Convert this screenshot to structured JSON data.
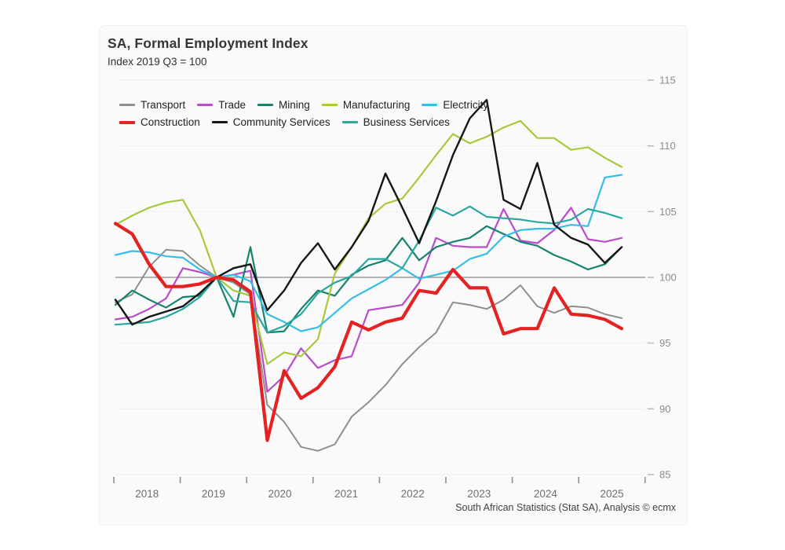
{
  "title": "SA, Formal Employment Index",
  "subtitle": "Index 2019 Q3 = 100",
  "source": "South African Statistics (Stat SA), Analysis © ecmx",
  "chart_data": {
    "type": "line",
    "title": "SA, Formal Employment Index",
    "subtitle": "Index 2019 Q3 = 100",
    "x_unit": "quarter",
    "x": [
      "2018 Q1",
      "2018 Q2",
      "2018 Q3",
      "2018 Q4",
      "2019 Q1",
      "2019 Q2",
      "2019 Q3",
      "2019 Q4",
      "2020 Q1",
      "2020 Q2",
      "2020 Q3",
      "2020 Q4",
      "2021 Q1",
      "2021 Q2",
      "2021 Q3",
      "2021 Q4",
      "2022 Q1",
      "2022 Q2",
      "2022 Q3",
      "2022 Q4",
      "2023 Q1",
      "2023 Q2",
      "2023 Q3",
      "2023 Q4",
      "2024 Q1",
      "2024 Q2",
      "2024 Q3",
      "2024 Q4",
      "2025 Q1",
      "2025 Q2",
      "2025 Q3"
    ],
    "x_year_labels": [
      "2018",
      "2019",
      "2020",
      "2021",
      "2022",
      "2023",
      "2024",
      "2025"
    ],
    "y_axis": {
      "min": 85,
      "max": 115,
      "step": 5,
      "side": "right",
      "ref_line": 100
    },
    "grid": "horizontal-faint",
    "legend_position": "top-left",
    "legend_rows": [
      [
        "Transport",
        "Trade",
        "Mining",
        "Manufacturing",
        "Electricity"
      ],
      [
        "Construction",
        "Community Services",
        "Business Services"
      ]
    ],
    "series": [
      {
        "name": "Transport",
        "color": "#8f8f8f",
        "width": 2,
        "values": [
          98.1,
          98.7,
          100.8,
          102.1,
          102.0,
          100.9,
          100.0,
          99.6,
          98.7,
          90.3,
          89.0,
          87.1,
          86.8,
          87.3,
          89.4,
          90.5,
          91.8,
          93.4,
          94.7,
          95.8,
          98.1,
          97.9,
          97.6,
          98.3,
          99.4,
          97.8,
          97.3,
          97.8,
          97.7,
          97.2,
          96.9
        ]
      },
      {
        "name": "Trade",
        "color": "#b94cc9",
        "width": 2.2,
        "values": [
          96.8,
          97.0,
          97.6,
          98.4,
          100.7,
          100.4,
          100.0,
          100.2,
          100.5,
          91.3,
          92.5,
          94.6,
          93.1,
          93.7,
          94.0,
          97.5,
          97.7,
          97.9,
          99.6,
          103.0,
          102.4,
          102.3,
          102.3,
          105.2,
          102.8,
          102.6,
          103.6,
          105.3,
          102.9,
          102.7,
          103.0
        ]
      },
      {
        "name": "Mining",
        "color": "#16836d",
        "width": 2.2,
        "values": [
          97.9,
          99.0,
          98.3,
          97.7,
          98.5,
          98.6,
          100.0,
          97.0,
          102.3,
          95.8,
          95.9,
          97.6,
          99.0,
          98.6,
          100.2,
          100.9,
          101.3,
          103.0,
          101.3,
          102.3,
          102.7,
          103.0,
          103.9,
          103.3,
          102.7,
          102.4,
          101.7,
          101.2,
          100.6,
          101.0,
          102.3
        ]
      },
      {
        "name": "Manufacturing",
        "color": "#a7c93c",
        "width": 2.2,
        "values": [
          104.0,
          104.7,
          105.3,
          105.7,
          105.9,
          103.6,
          100.0,
          99.0,
          98.6,
          93.4,
          94.3,
          94.0,
          95.3,
          100.3,
          102.3,
          104.5,
          105.6,
          106.0,
          107.6,
          109.3,
          110.9,
          110.2,
          110.7,
          111.4,
          111.9,
          110.6,
          110.6,
          109.7,
          109.9,
          109.1,
          108.4
        ]
      },
      {
        "name": "Electricity",
        "color": "#38bde8",
        "width": 2.2,
        "values": [
          101.7,
          102.0,
          101.9,
          101.6,
          101.5,
          100.6,
          100.0,
          100.2,
          99.7,
          97.2,
          96.6,
          95.9,
          96.2,
          97.3,
          98.4,
          99.1,
          99.8,
          100.7,
          99.9,
          100.2,
          100.5,
          101.4,
          101.8,
          103.1,
          103.6,
          103.7,
          103.7,
          104.0,
          103.9,
          107.6,
          107.8
        ]
      },
      {
        "name": "Construction",
        "color": "#e52222",
        "width": 4.2,
        "values": [
          104.1,
          103.3,
          101.0,
          99.3,
          99.3,
          99.5,
          100.0,
          99.8,
          98.9,
          87.6,
          92.9,
          90.8,
          91.6,
          93.2,
          96.6,
          96.0,
          96.6,
          96.9,
          99.0,
          98.8,
          100.6,
          99.2,
          99.2,
          95.7,
          96.1,
          96.1,
          99.2,
          97.2,
          97.1,
          96.8,
          96.1
        ]
      },
      {
        "name": "Community Services",
        "color": "#161616",
        "width": 2.4,
        "values": [
          98.3,
          96.4,
          97.0,
          97.4,
          97.8,
          98.8,
          100.0,
          100.7,
          101.0,
          97.5,
          99.0,
          101.1,
          102.6,
          100.6,
          102.3,
          104.3,
          107.9,
          105.3,
          102.6,
          105.8,
          109.3,
          112.1,
          113.5,
          105.9,
          105.2,
          108.7,
          104.0,
          103.0,
          102.5,
          101.1,
          102.3
        ]
      },
      {
        "name": "Business Services",
        "color": "#2aa89e",
        "width": 2.2,
        "values": [
          96.4,
          96.5,
          96.6,
          97.0,
          97.6,
          98.5,
          100.0,
          98.2,
          98.1,
          95.8,
          96.3,
          97.2,
          98.8,
          99.6,
          100.1,
          101.4,
          101.4,
          100.7,
          102.8,
          105.3,
          104.7,
          105.4,
          104.6,
          104.5,
          104.4,
          104.2,
          104.1,
          104.4,
          105.2,
          104.9,
          104.5
        ]
      }
    ]
  }
}
